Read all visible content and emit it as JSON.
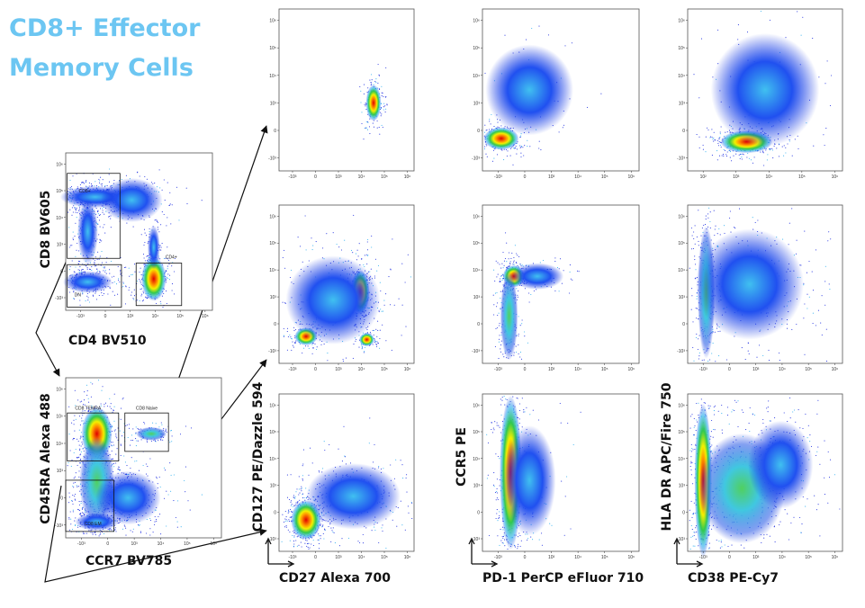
{
  "title": {
    "lines": [
      "CD8+ Effector",
      "Memory Cells"
    ]
  },
  "tick_sets": {
    "biex": [
      "-10³",
      "0",
      "10³",
      "10⁴",
      "10⁵",
      "10⁶"
    ],
    "log": [
      "10²",
      "10³",
      "10⁴",
      "10⁵",
      "10⁶"
    ]
  },
  "gating": [
    {
      "x_label": "CD4 BV510",
      "y_label": "CD8 BV605",
      "gates": [
        "CD8+",
        "DN",
        "CD4+"
      ]
    },
    {
      "x_label": "CCR7 BV785",
      "y_label": "CD45RA Alexa 488",
      "gates": [
        "CD8 TEMRA",
        "CD8 Naive",
        "CD8 EM"
      ]
    }
  ],
  "grid": {
    "x_labels": [
      "CD27 Alexa 700",
      "PD-1 PerCP eFluor 710",
      "CD38 PE-Cy7"
    ],
    "y_labels": [
      "CD127 PE/Dazzle 594",
      "CCR5 PE",
      "HLA DR APC/Fire 750"
    ]
  }
}
